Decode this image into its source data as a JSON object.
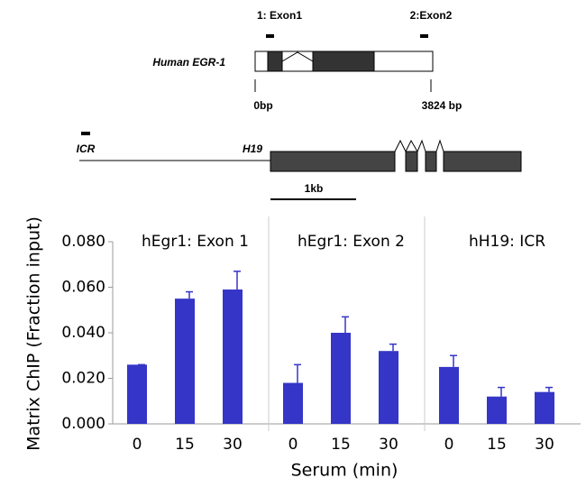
{
  "diagram": {
    "egr1_label": "Human EGR-1",
    "exon1_label": "1: Exon1",
    "exon2_label": "2:Exon2",
    "start_label": "0bp",
    "end_label": "3824 bp",
    "icr_label": "ICR",
    "h19_label": "H19",
    "scale_label": "1kb"
  },
  "chart_data": {
    "type": "bar",
    "y_label": "Matrix ChIP (Fraction input)",
    "x_label": "Serum (min)",
    "color": "#3535c8",
    "ylim": [
      0,
      0.08
    ],
    "yticks": [
      {
        "value": 0,
        "label": "0.000"
      },
      {
        "value": 0.02,
        "label": "0.020"
      },
      {
        "value": 0.04,
        "label": "0.040"
      },
      {
        "value": 0.06,
        "label": "0.060"
      },
      {
        "value": 0.08,
        "label": "0.080"
      }
    ],
    "categories": [
      "0",
      "15",
      "30"
    ],
    "panels": [
      {
        "title": "hEgr1: Exon 1",
        "values": [
          0.026,
          0.055,
          0.059
        ],
        "errors": [
          0,
          0.003,
          0.008
        ]
      },
      {
        "title": "hEgr1: Exon 2",
        "values": [
          0.018,
          0.04,
          0.032
        ],
        "errors": [
          0.008,
          0.007,
          0.003
        ]
      },
      {
        "title": "hH19: ICR",
        "values": [
          0.025,
          0.012,
          0.014
        ],
        "errors": [
          0.005,
          0.004,
          0.002
        ]
      }
    ]
  }
}
